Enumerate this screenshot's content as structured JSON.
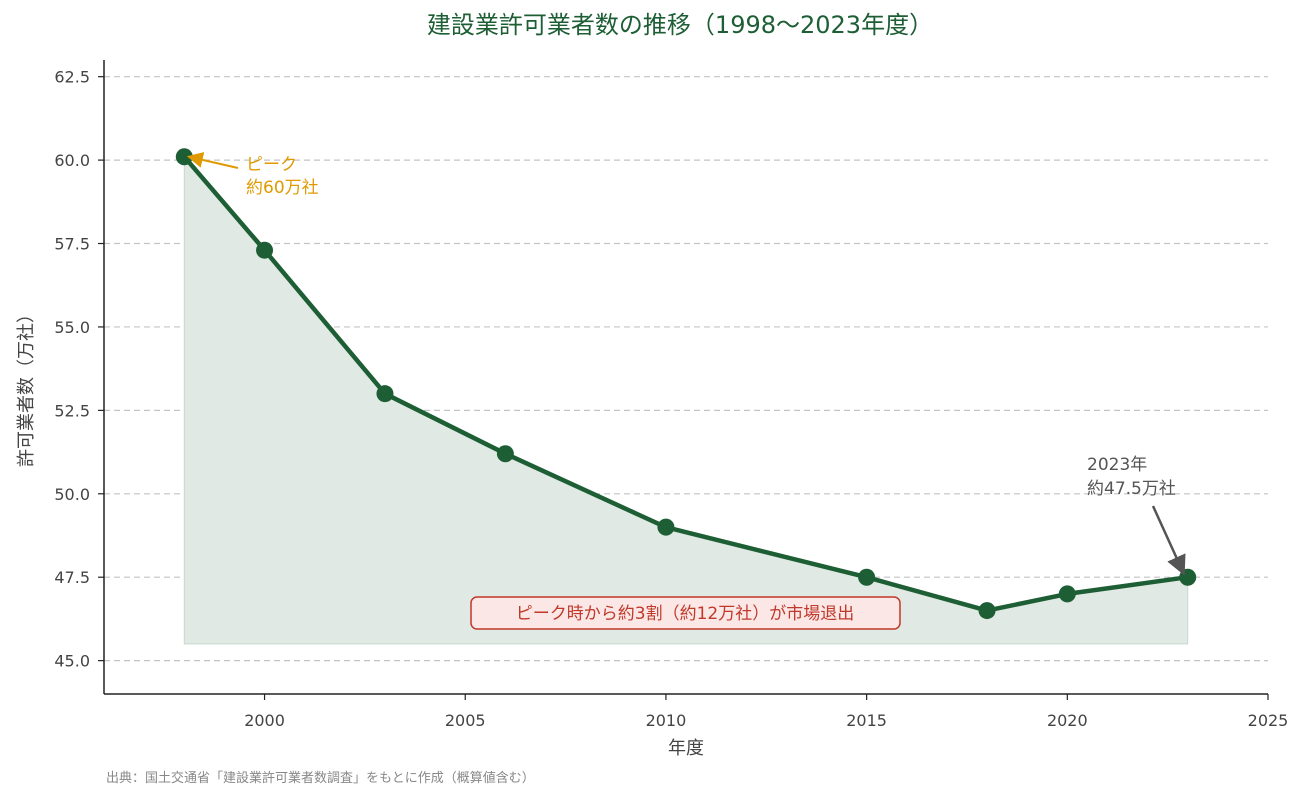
{
  "chart_data": {
    "type": "line",
    "title": "建設業許可業者数の推移（1998～2023年度）",
    "xlabel": "年度",
    "ylabel": "許可業者数（万社）",
    "xlim": [
      1996,
      2025
    ],
    "ylim": [
      44.0,
      63.0
    ],
    "x_ticks": [
      "2000",
      "2005",
      "2010",
      "2015",
      "2020",
      "2025"
    ],
    "y_ticks": [
      "45.0",
      "47.5",
      "50.0",
      "52.5",
      "55.0",
      "57.5",
      "60.0",
      "62.5"
    ],
    "grid": "y-dashed",
    "fill_baseline": 45.5,
    "series": [
      {
        "x": [
          1998,
          2000,
          2003,
          2006,
          2010,
          2015,
          2018,
          2020,
          2023
        ],
        "y": [
          60.1,
          57.3,
          53.0,
          51.2,
          49.0,
          47.5,
          46.5,
          47.0,
          47.5
        ]
      }
    ],
    "annotations": {
      "peak_line1": "ピーク",
      "peak_line2": "約60万社",
      "end_line1": "2023年",
      "end_line2": "約47.5万社",
      "decline_box": "ピーク時から約3割（約12万社）が市場退出"
    },
    "colors": {
      "line": "#1d5e35",
      "fill": "#e0e9e3",
      "peak_annotation": "#e09a00",
      "end_annotation": "#555555",
      "box_border": "#c0392b",
      "box_fill": "#fbe7e5"
    }
  },
  "source_note": "出典：国土交通省「建設業許可業者数調査」をもとに作成（概算値含む）"
}
